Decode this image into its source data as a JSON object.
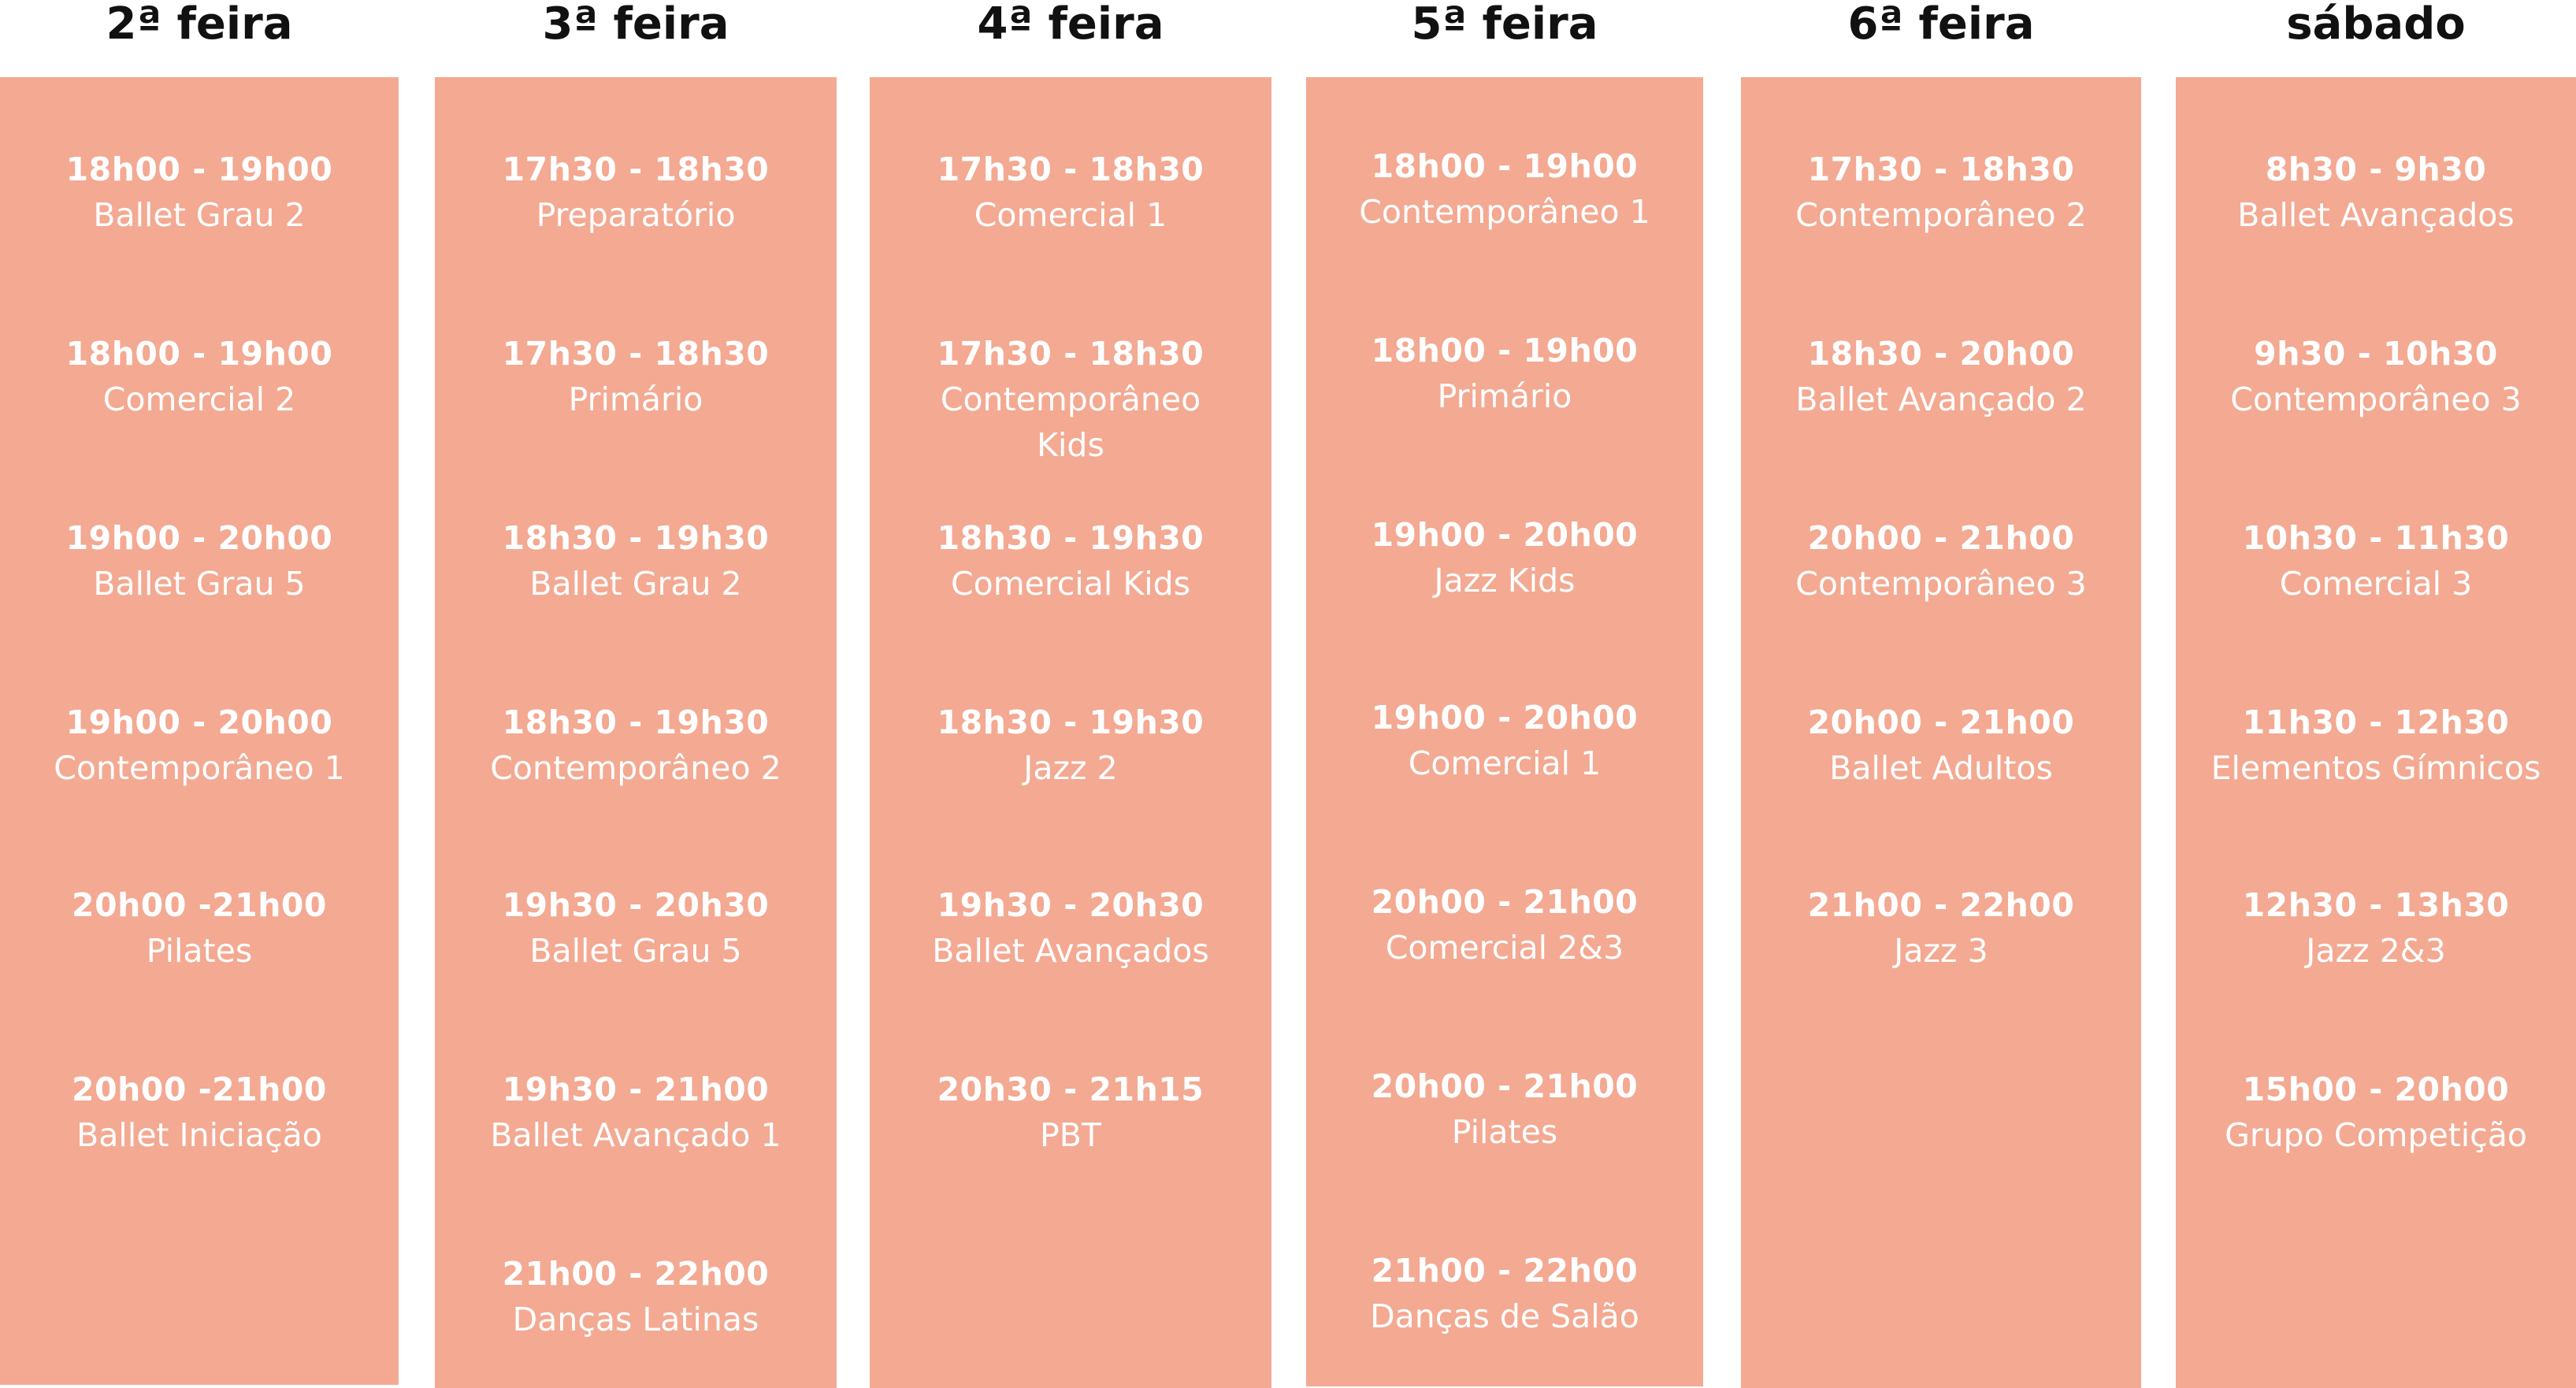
{
  "schedule": {
    "days": [
      {
        "label": "2ª feira",
        "classes": [
          {
            "time": "18h00 - 19h00",
            "name": "Ballet Grau 2"
          },
          {
            "time": "18h00 - 19h00",
            "name": "Comercial 2"
          },
          {
            "time": "19h00 - 20h00",
            "name": "Ballet Grau 5"
          },
          {
            "time": "19h00 - 20h00",
            "name": "Contemporâneo 1"
          },
          {
            "time": "20h00 -21h00",
            "name": "Pilates"
          },
          {
            "time": "20h00 -21h00",
            "name": "Ballet Iniciação"
          }
        ]
      },
      {
        "label": "3ª feira",
        "classes": [
          {
            "time": "17h30 - 18h30",
            "name": "Preparatório"
          },
          {
            "time": "17h30 - 18h30",
            "name": "Primário"
          },
          {
            "time": "18h30 - 19h30",
            "name": "Ballet Grau 2"
          },
          {
            "time": "18h30 - 19h30",
            "name": "Contemporâneo 2"
          },
          {
            "time": "19h30 - 20h30",
            "name": "Ballet Grau 5"
          },
          {
            "time": "19h30 - 21h00",
            "name": "Ballet Avançado 1"
          },
          {
            "time": "21h00 - 22h00",
            "name": "Danças Latinas"
          }
        ]
      },
      {
        "label": "4ª feira",
        "classes": [
          {
            "time": "17h30 - 18h30",
            "name": "Comercial 1"
          },
          {
            "time": "17h30 - 18h30",
            "name": "Contemporâneo Kids"
          },
          {
            "time": "18h30 - 19h30",
            "name": "Comercial Kids"
          },
          {
            "time": "18h30 - 19h30",
            "name": "Jazz 2"
          },
          {
            "time": "19h30 - 20h30",
            "name": "Ballet Avançados"
          },
          {
            "time": "20h30 - 21h15",
            "name": "PBT"
          }
        ]
      },
      {
        "label": "5ª feira",
        "classes": [
          {
            "time": "18h00 - 19h00",
            "name": "Contemporâneo 1"
          },
          {
            "time": "18h00 - 19h00",
            "name": "Primário"
          },
          {
            "time": "19h00 - 20h00",
            "name": "Jazz Kids"
          },
          {
            "time": "19h00 - 20h00",
            "name": "Comercial 1"
          },
          {
            "time": "20h00 - 21h00",
            "name": "Comercial 2&3"
          },
          {
            "time": "20h00 - 21h00",
            "name": "Pilates"
          },
          {
            "time": "21h00 - 22h00",
            "name": "Danças de Salão"
          }
        ]
      },
      {
        "label": "6ª feira",
        "classes": [
          {
            "time": "17h30 - 18h30",
            "name": "Contemporâneo 2"
          },
          {
            "time": "18h30 - 20h00",
            "name": "Ballet Avançado 2"
          },
          {
            "time": "20h00 - 21h00",
            "name": "Contemporâneo 3"
          },
          {
            "time": "20h00 - 21h00",
            "name": "Ballet Adultos"
          },
          {
            "time": "21h00 - 22h00",
            "name": "Jazz 3"
          }
        ]
      },
      {
        "label": "sábado",
        "classes": [
          {
            "time": "8h30 - 9h30",
            "name": "Ballet Avançados"
          },
          {
            "time": "9h30 - 10h30",
            "name": "Contemporâneo 3"
          },
          {
            "time": "10h30 - 11h30",
            "name": "Comercial 3"
          },
          {
            "time": "11h30 - 12h30",
            "name": "Elementos Gímnicos"
          },
          {
            "time": "12h30 - 13h30",
            "name": "Jazz 2&3"
          },
          {
            "time": "15h00 - 20h00",
            "name": "Grupo Competição"
          }
        ]
      }
    ]
  },
  "colors": {
    "column_background": "#f3a992",
    "header_text": "#111111",
    "slot_text": "#ffffff"
  }
}
